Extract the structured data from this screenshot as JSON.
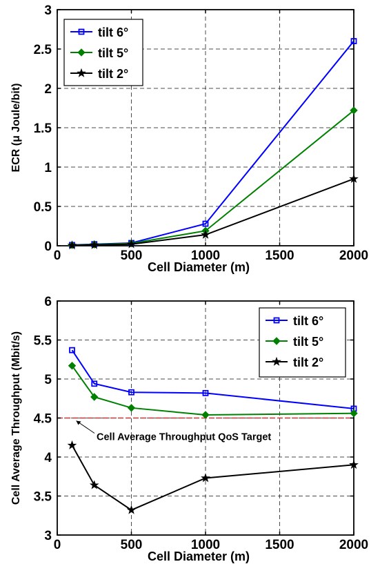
{
  "chart_data": [
    {
      "type": "line",
      "xlabel": "Cell Diameter (m)",
      "ylabel": "ECR (μ Joule/bit)",
      "xlim": [
        0,
        2000
      ],
      "ylim": [
        0,
        3
      ],
      "xticks": [
        "0",
        "500",
        "1000",
        "1500",
        "2000"
      ],
      "yticks": [
        "0",
        "0.5",
        "1",
        "1.5",
        "2",
        "2.5",
        "3"
      ],
      "grid": true,
      "legend_position": "top-left",
      "series": [
        {
          "name": "tilt 6°",
          "color": "#0000ff",
          "marker": "square",
          "x": [
            100,
            250,
            500,
            1000,
            2000
          ],
          "y": [
            0.01,
            0.02,
            0.035,
            0.28,
            2.6
          ]
        },
        {
          "name": "tilt 5°",
          "color": "#008000",
          "marker": "diamond",
          "x": [
            100,
            250,
            500,
            1000,
            2000
          ],
          "y": [
            0.008,
            0.015,
            0.03,
            0.19,
            1.72
          ]
        },
        {
          "name": "tilt 2°",
          "color": "#000000",
          "marker": "star",
          "x": [
            100,
            250,
            500,
            1000,
            2000
          ],
          "y": [
            0.005,
            0.01,
            0.02,
            0.14,
            0.85
          ]
        }
      ]
    },
    {
      "type": "line",
      "xlabel": "Cell Diameter (m)",
      "ylabel": "Cell Average Throughput (Mbit/s)",
      "xlim": [
        0,
        2000
      ],
      "ylim": [
        3,
        6
      ],
      "xticks": [
        "0",
        "500",
        "1000",
        "1500",
        "2000"
      ],
      "yticks": [
        "3",
        "3.5",
        "4",
        "4.5",
        "5",
        "5.5",
        "6"
      ],
      "grid": true,
      "legend_position": "top-right",
      "target_line": {
        "y": 4.5,
        "color": "#cc3333"
      },
      "annotation": {
        "text": "Cell Average Throughput QoS Target",
        "arrow_to": [
          100,
          4.5
        ]
      },
      "series": [
        {
          "name": "tilt 6°",
          "color": "#0000ff",
          "marker": "square",
          "x": [
            100,
            250,
            500,
            1000,
            2000
          ],
          "y": [
            5.37,
            4.94,
            4.83,
            4.82,
            4.62
          ]
        },
        {
          "name": "tilt 5°",
          "color": "#008000",
          "marker": "diamond",
          "x": [
            100,
            250,
            500,
            1000,
            2000
          ],
          "y": [
            5.17,
            4.77,
            4.63,
            4.54,
            4.56
          ]
        },
        {
          "name": "tilt 2°",
          "color": "#000000",
          "marker": "star",
          "x": [
            100,
            250,
            500,
            1000,
            2000
          ],
          "y": [
            4.15,
            3.64,
            3.32,
            3.73,
            3.9
          ]
        }
      ]
    }
  ]
}
